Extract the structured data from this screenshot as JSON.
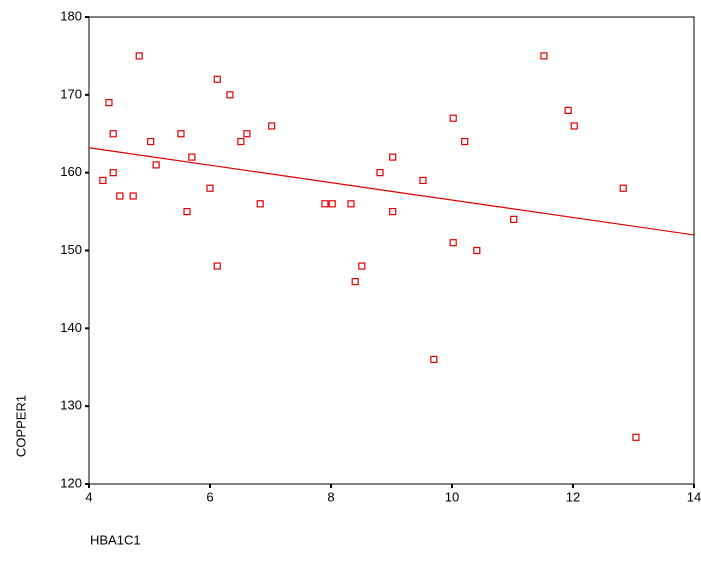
{
  "chart_data": {
    "type": "scatter",
    "x_label": "HBA1C1",
    "y_label": "COPPER1",
    "xlim": [
      4,
      14
    ],
    "ylim": [
      120,
      180
    ],
    "xticks": [
      4,
      6,
      8,
      10,
      12,
      14
    ],
    "yticks": [
      120,
      130,
      140,
      150,
      160,
      170,
      180
    ],
    "color": "#e00000",
    "x": [
      4.23,
      4.33,
      4.4,
      4.4,
      4.51,
      4.73,
      4.83,
      5.02,
      5.11,
      5.52,
      5.62,
      5.7,
      6.0,
      6.12,
      6.12,
      6.33,
      6.51,
      6.61,
      6.83,
      7.02,
      7.9,
      8.02,
      8.33,
      8.4,
      8.51,
      8.81,
      9.02,
      9.02,
      9.52,
      9.7,
      10.02,
      10.02,
      10.21,
      10.41,
      11.02,
      11.52,
      11.92,
      12.02,
      12.83,
      13.04
    ],
    "values": [
      159,
      169,
      165,
      160,
      157,
      157,
      175,
      164,
      161,
      165,
      155,
      162,
      158,
      172,
      148,
      170,
      164,
      165,
      156,
      166,
      156,
      156,
      156,
      146,
      148,
      160,
      162,
      155,
      159,
      136,
      167,
      151,
      164,
      150,
      154,
      175,
      168,
      166,
      158,
      126
    ],
    "fit_line": {
      "x": [
        4,
        14
      ],
      "y": [
        163.2,
        152
      ]
    }
  }
}
